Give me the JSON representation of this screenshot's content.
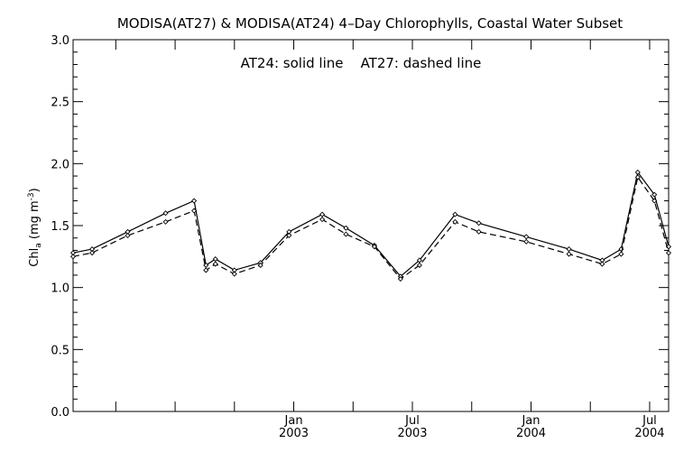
{
  "chart_data": {
    "type": "line",
    "title": "MODISA(AT27) & MODISA(AT24) 4–Day Chlorophylls, Coastal Water Subset",
    "annotation": "AT24: solid line    AT27: dashed line",
    "ylabel": {
      "base": "Chl",
      "subscript": "a",
      "unit_open": " (mg m",
      "unit_power": "-3",
      "unit_close": ")"
    },
    "ylim": [
      0.0,
      3.0
    ],
    "yticks": [
      "0.0",
      "0.5",
      "1.0",
      "1.5",
      "2.0",
      "2.5",
      "3.0"
    ],
    "xlim": [
      2002.07,
      2004.58
    ],
    "xtick_labels": [
      {
        "x": 2003.0,
        "month": "Jan",
        "year": "2003"
      },
      {
        "x": 2003.5,
        "month": "Jul",
        "year": "2003"
      },
      {
        "x": 2004.0,
        "month": "Jan",
        "year": "2004"
      },
      {
        "x": 2004.5,
        "month": "Jul",
        "year": "2004"
      }
    ],
    "x": [
      2002.07,
      2002.15,
      2002.3,
      2002.46,
      2002.58,
      2002.63,
      2002.67,
      2002.75,
      2002.86,
      2002.98,
      2003.12,
      2003.22,
      2003.34,
      2003.45,
      2003.53,
      2003.68,
      2003.78,
      2003.98,
      2004.16,
      2004.3,
      2004.38,
      2004.45,
      2004.52,
      2004.58
    ],
    "series": [
      {
        "name": "AT24",
        "style": "solid",
        "values": [
          1.28,
          1.31,
          1.45,
          1.6,
          1.7,
          1.18,
          1.23,
          1.14,
          1.2,
          1.45,
          1.59,
          1.48,
          1.34,
          1.09,
          1.22,
          1.59,
          1.52,
          1.41,
          1.31,
          1.22,
          1.31,
          1.93,
          1.75,
          1.33
        ]
      },
      {
        "name": "AT27",
        "style": "dashed",
        "values": [
          1.25,
          1.28,
          1.42,
          1.53,
          1.62,
          1.14,
          1.19,
          1.11,
          1.18,
          1.42,
          1.55,
          1.43,
          1.33,
          1.07,
          1.18,
          1.53,
          1.45,
          1.37,
          1.27,
          1.19,
          1.27,
          1.89,
          1.7,
          1.28
        ]
      }
    ],
    "grid": false,
    "legend": "none"
  }
}
